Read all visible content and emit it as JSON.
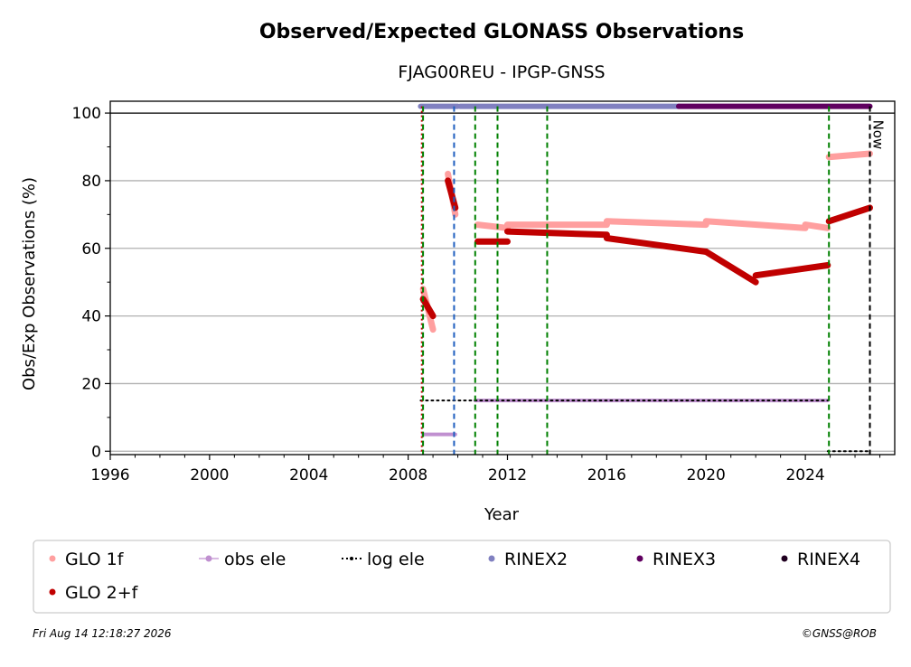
{
  "chart_data": {
    "type": "scatter",
    "title": "Observed/Expected GLONASS Observations",
    "subtitle": "FJAG00REU - IPGP-GNSS",
    "xlabel": "Year",
    "ylabel": "Obs/Exp Observations (%)",
    "xlim": [
      1996,
      2027.6
    ],
    "ylim": [
      -1,
      103.5
    ],
    "xticks": [
      "1996",
      "2000",
      "2004",
      "2008",
      "2012",
      "2016",
      "2020",
      "2024"
    ],
    "yticks": [
      "0",
      "20",
      "40",
      "60",
      "80",
      "100"
    ],
    "grid": "horizontal",
    "now_label": "Now",
    "now_x": 2026.6,
    "legend_position": "bottom",
    "series": [
      {
        "name": "GLO 1f",
        "color": "#ff9f9f",
        "segments": [
          {
            "x": [
              2008.6,
              2009.0
            ],
            "y": [
              48,
              36
            ]
          },
          {
            "x": [
              2009.6,
              2009.9
            ],
            "y": [
              82,
              70
            ]
          },
          {
            "x": [
              2010.8,
              2012.0
            ],
            "y": [
              67,
              66
            ]
          },
          {
            "x": [
              2012.0,
              2016.0
            ],
            "y": [
              67,
              67
            ]
          },
          {
            "x": [
              2016.0,
              2020.0
            ],
            "y": [
              68,
              67
            ]
          },
          {
            "x": [
              2020.0,
              2024.0
            ],
            "y": [
              68,
              66
            ]
          },
          {
            "x": [
              2024.0,
              2024.9
            ],
            "y": [
              67,
              66
            ]
          },
          {
            "x": [
              2024.95,
              2026.6
            ],
            "y": [
              87,
              88
            ]
          }
        ]
      },
      {
        "name": "GLO 2+f",
        "color": "#c00000",
        "segments": [
          {
            "x": [
              2008.6,
              2009.0
            ],
            "y": [
              45,
              40
            ]
          },
          {
            "x": [
              2009.6,
              2009.9
            ],
            "y": [
              80,
              72
            ]
          },
          {
            "x": [
              2010.8,
              2012.0
            ],
            "y": [
              62,
              62
            ]
          },
          {
            "x": [
              2012.0,
              2016.0
            ],
            "y": [
              65,
              64
            ]
          },
          {
            "x": [
              2016.0,
              2020.0
            ],
            "y": [
              63,
              59
            ]
          },
          {
            "x": [
              2020.0,
              2022.0
            ],
            "y": [
              59,
              50
            ]
          },
          {
            "x": [
              2022.0,
              2024.9
            ],
            "y": [
              52,
              55
            ]
          },
          {
            "x": [
              2024.95,
              2026.6
            ],
            "y": [
              68,
              72
            ]
          }
        ]
      },
      {
        "name": "obs ele",
        "color": "#c090d0",
        "segments": [
          {
            "x": [
              2008.6,
              2009.9
            ],
            "y": [
              5,
              5
            ]
          },
          {
            "x": [
              2010.7,
              2024.9
            ],
            "y": [
              15,
              15
            ]
          }
        ]
      },
      {
        "name": "log ele",
        "color": "#000000",
        "segments": [
          {
            "x": [
              2008.5,
              2024.9
            ],
            "y": [
              15,
              15
            ]
          },
          {
            "x": [
              2024.9,
              2026.6
            ],
            "y": [
              0,
              0
            ]
          }
        ]
      },
      {
        "name": "RINEX2",
        "color": "#8080c0",
        "segments": [
          {
            "x": [
              2008.5,
              2010.0
            ],
            "y": [
              102,
              102
            ]
          },
          {
            "x": [
              2010.1,
              2018.9
            ],
            "y": [
              102,
              102
            ]
          }
        ]
      },
      {
        "name": "RINEX3",
        "color": "#600060",
        "segments": [
          {
            "x": [
              2018.9,
              2026.6
            ],
            "y": [
              102,
              102
            ]
          }
        ]
      },
      {
        "name": "RINEX4",
        "color": "#200020",
        "segments": []
      }
    ],
    "event_lines": [
      {
        "x": 2008.55,
        "color": "#c00000",
        "style": "dotted"
      },
      {
        "x": 2008.6,
        "color": "#008000",
        "style": "dashed"
      },
      {
        "x": 2009.85,
        "color": "#1f5fbf",
        "style": "dashed"
      },
      {
        "x": 2010.7,
        "color": "#008000",
        "style": "dashed"
      },
      {
        "x": 2011.6,
        "color": "#008000",
        "style": "dashed"
      },
      {
        "x": 2013.6,
        "color": "#008000",
        "style": "dashed"
      },
      {
        "x": 2024.95,
        "color": "#008000",
        "style": "dashed"
      }
    ],
    "legend": [
      {
        "label": "GLO 1f",
        "color": "#ff9f9f",
        "marker": "dot"
      },
      {
        "label": "obs ele",
        "color": "#c090d0",
        "marker": "line-dot"
      },
      {
        "label": "log ele",
        "color": "#000000",
        "marker": "dotted-line"
      },
      {
        "label": "RINEX2",
        "color": "#8080c0",
        "marker": "dot"
      },
      {
        "label": "RINEX3",
        "color": "#600060",
        "marker": "dot"
      },
      {
        "label": "RINEX4",
        "color": "#200020",
        "marker": "dot"
      },
      {
        "label": "GLO 2+f",
        "color": "#c00000",
        "marker": "dot"
      }
    ]
  },
  "footer": {
    "timestamp": "Fri Aug 14 12:18:27 2026",
    "credit": "©GNSS@ROB"
  }
}
